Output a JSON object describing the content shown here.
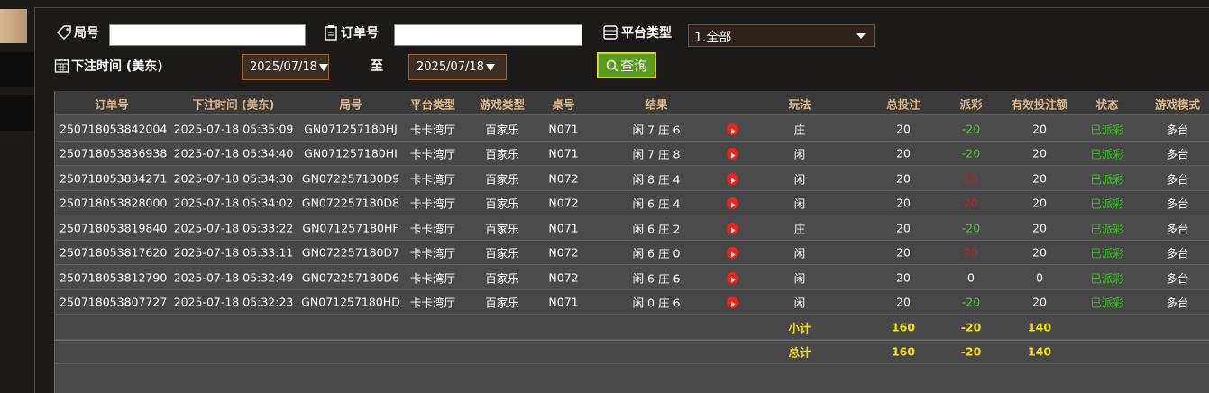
{
  "form": {
    "round_label": "局号",
    "order_label": "订单号",
    "platform_label": "平台类型",
    "platform_value": "1.全部",
    "time_label": "下注时间 (美东)",
    "date_from": "2025/07/18",
    "to_label": "至",
    "date_to": "2025/07/18",
    "query_button": "查询"
  },
  "table": {
    "columns": [
      "订单号",
      "下注时间 (美东)",
      "局号",
      "平台类型",
      "游戏类型",
      "桌号",
      "结果",
      "玩法",
      "总投注",
      "派彩",
      "有效投注额",
      "状态",
      "游戏模式"
    ],
    "rows": [
      [
        "250718053842004",
        "2025-07-18 05:35:09",
        "GN071257180HJ",
        "卡卡湾厅",
        "百家乐",
        "N071",
        "闲 7 庄 6",
        "庄",
        20,
        -20,
        20,
        "已派彩",
        "多台"
      ],
      [
        "250718053836938",
        "2025-07-18 05:34:40",
        "GN071257180HI",
        "卡卡湾厅",
        "百家乐",
        "N071",
        "闲 7 庄 8",
        "闲",
        20,
        -20,
        20,
        "已派彩",
        "多台"
      ],
      [
        "250718053834271",
        "2025-07-18 05:34:30",
        "GN072257180D9",
        "卡卡湾厅",
        "百家乐",
        "N072",
        "闲 8 庄 4",
        "闲",
        20,
        20,
        20,
        "已派彩",
        "多台"
      ],
      [
        "250718053828000",
        "2025-07-18 05:34:02",
        "GN072257180D8",
        "卡卡湾厅",
        "百家乐",
        "N072",
        "闲 6 庄 4",
        "闲",
        20,
        20,
        20,
        "已派彩",
        "多台"
      ],
      [
        "250718053819840",
        "2025-07-18 05:33:22",
        "GN071257180HF",
        "卡卡湾厅",
        "百家乐",
        "N071",
        "闲 6 庄 2",
        "庄",
        20,
        -20,
        20,
        "已派彩",
        "多台"
      ],
      [
        "250718053817620",
        "2025-07-18 05:33:11",
        "GN072257180D7",
        "卡卡湾厅",
        "百家乐",
        "N072",
        "闲 6 庄 0",
        "闲",
        20,
        20,
        20,
        "已派彩",
        "多台"
      ],
      [
        "250718053812790",
        "2025-07-18 05:32:49",
        "GN072257180D6",
        "卡卡湾厅",
        "百家乐",
        "N072",
        "闲 6 庄 6",
        "闲",
        20,
        0,
        0,
        "已派彩",
        "多台"
      ],
      [
        "250718053807727",
        "2025-07-18 05:32:23",
        "GN071257180HD",
        "卡卡湾厅",
        "百家乐",
        "N071",
        "闲 0 庄 6",
        "闲",
        20,
        -20,
        20,
        "已派彩",
        "多台"
      ]
    ],
    "summary": [
      {
        "label": "小计",
        "total_bet": 160,
        "payout": -20,
        "valid_bet": 140
      },
      {
        "label": "总计",
        "total_bet": 160,
        "payout": -20,
        "valid_bet": 140
      }
    ]
  }
}
